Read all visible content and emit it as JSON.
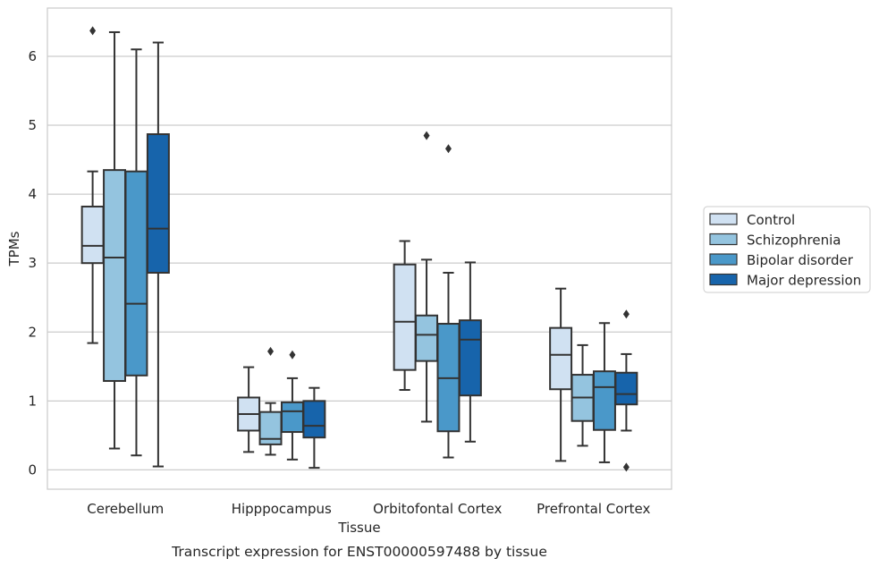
{
  "chart_data": {
    "type": "boxplot",
    "caption": "Transcript expression for ENST00000597488 by tissue",
    "xlabel": "Tissue",
    "ylabel": "TPMs",
    "ylim": [
      -0.28,
      6.7
    ],
    "yticks": [
      0,
      1,
      2,
      3,
      4,
      5,
      6
    ],
    "grid": "horizontal",
    "legend_position": "right",
    "categories": [
      "Cerebellum",
      "Hipppocampus",
      "Orbitofontal Cortex",
      "Prefrontal Cortex"
    ],
    "series": [
      {
        "name": "Control",
        "color": "#d0e1f2",
        "boxes": [
          {
            "whislo": 1.84,
            "q1": 3.0,
            "med": 3.25,
            "q3": 3.82,
            "whishi": 4.33,
            "fliers": [
              6.37
            ]
          },
          {
            "whislo": 0.26,
            "q1": 0.57,
            "med": 0.81,
            "q3": 1.05,
            "whishi": 1.49,
            "fliers": []
          },
          {
            "whislo": 1.16,
            "q1": 1.45,
            "med": 2.15,
            "q3": 2.98,
            "whishi": 3.32,
            "fliers": []
          },
          {
            "whislo": 0.13,
            "q1": 1.17,
            "med": 1.67,
            "q3": 2.06,
            "whishi": 2.63,
            "fliers": []
          }
        ]
      },
      {
        "name": "Schizophrenia",
        "color": "#94c4df",
        "boxes": [
          {
            "whislo": 0.31,
            "q1": 1.29,
            "med": 3.08,
            "q3": 4.35,
            "whishi": 6.35,
            "fliers": []
          },
          {
            "whislo": 0.22,
            "q1": 0.37,
            "med": 0.45,
            "q3": 0.84,
            "whishi": 0.97,
            "fliers": [
              1.72
            ]
          },
          {
            "whislo": 0.7,
            "q1": 1.58,
            "med": 1.96,
            "q3": 2.24,
            "whishi": 3.05,
            "fliers": [
              4.85
            ]
          },
          {
            "whislo": 0.35,
            "q1": 0.71,
            "med": 1.05,
            "q3": 1.38,
            "whishi": 1.81,
            "fliers": []
          }
        ]
      },
      {
        "name": "Bipolar disorder",
        "color": "#4a98c9",
        "boxes": [
          {
            "whislo": 0.21,
            "q1": 1.37,
            "med": 2.41,
            "q3": 4.33,
            "whishi": 6.1,
            "fliers": []
          },
          {
            "whislo": 0.15,
            "q1": 0.55,
            "med": 0.85,
            "q3": 0.98,
            "whishi": 1.33,
            "fliers": [
              1.67
            ]
          },
          {
            "whislo": 0.18,
            "q1": 0.56,
            "med": 1.33,
            "q3": 2.12,
            "whishi": 2.86,
            "fliers": [
              4.66
            ]
          },
          {
            "whislo": 0.11,
            "q1": 0.58,
            "med": 1.2,
            "q3": 1.43,
            "whishi": 2.13,
            "fliers": []
          }
        ]
      },
      {
        "name": "Major depression",
        "color": "#1764ab",
        "boxes": [
          {
            "whislo": 0.05,
            "q1": 2.86,
            "med": 3.5,
            "q3": 4.87,
            "whishi": 6.2,
            "fliers": []
          },
          {
            "whislo": 0.03,
            "q1": 0.47,
            "med": 0.64,
            "q3": 1.0,
            "whishi": 1.19,
            "fliers": []
          },
          {
            "whislo": 0.41,
            "q1": 1.08,
            "med": 1.89,
            "q3": 2.17,
            "whishi": 3.01,
            "fliers": []
          },
          {
            "whislo": 0.57,
            "q1": 0.95,
            "med": 1.1,
            "q3": 1.41,
            "whishi": 1.68,
            "fliers": [
              2.26,
              0.04
            ]
          }
        ]
      }
    ]
  }
}
